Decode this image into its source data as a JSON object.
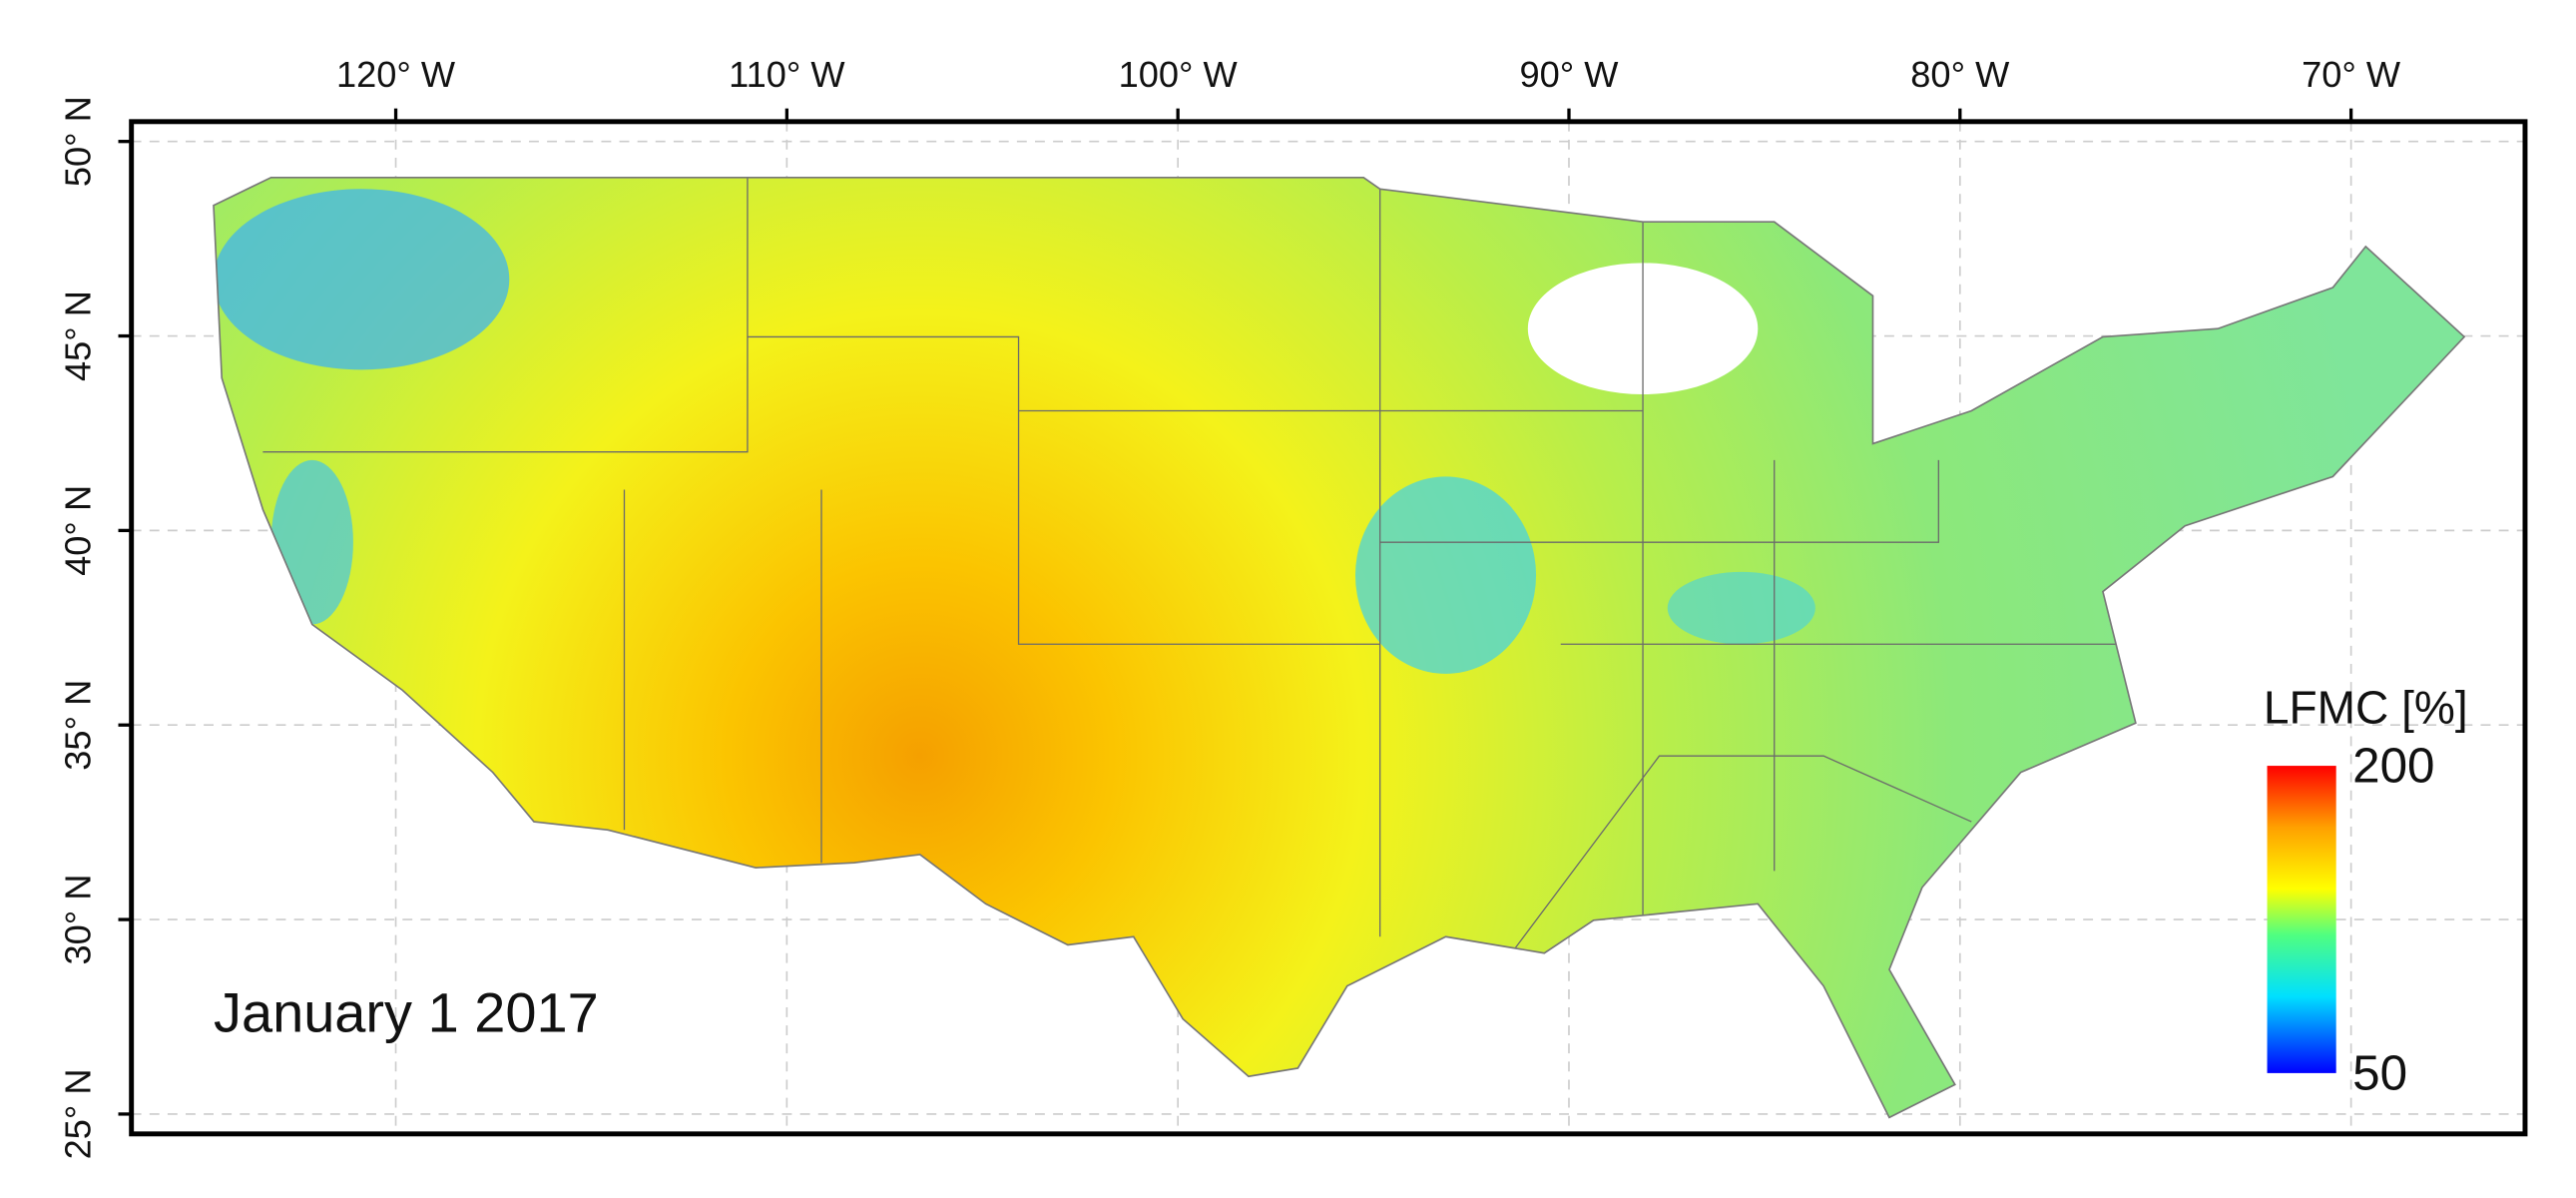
{
  "title": "January 1 2017",
  "longitude": {
    "xlim": [
      -126.76,
      -65.55
    ],
    "ticks": [
      {
        "value": -120,
        "label": "120° W"
      },
      {
        "value": -110,
        "label": "110° W"
      },
      {
        "value": -100,
        "label": "100° W"
      },
      {
        "value": -90,
        "label": "90° W"
      },
      {
        "value": -80,
        "label": "80° W"
      },
      {
        "value": -70,
        "label": "70° W"
      }
    ]
  },
  "latitude": {
    "ylim": [
      24.49,
      50.51
    ],
    "ticks": [
      {
        "value": 25,
        "label": "25° N"
      },
      {
        "value": 30,
        "label": "30° N"
      },
      {
        "value": 35,
        "label": "35° N"
      },
      {
        "value": 40,
        "label": "40° N"
      },
      {
        "value": 45,
        "label": "45° N"
      },
      {
        "value": 50,
        "label": "50° N"
      }
    ]
  },
  "colorbar": {
    "label": "LFMC [%]",
    "range": [
      50,
      200
    ],
    "ticks": [
      50,
      200
    ]
  }
}
